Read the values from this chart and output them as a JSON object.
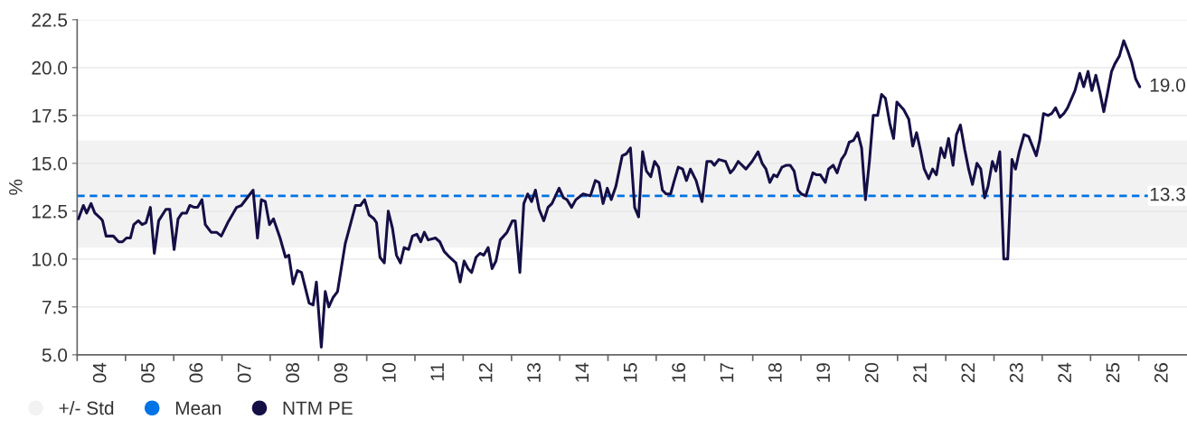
{
  "chart_data": {
    "type": "line",
    "ylabel": "%",
    "xlim": [
      "2004-01-01",
      "2027-01-01"
    ],
    "xticks": [
      {
        "value": "2004-01-01",
        "label": null
      },
      {
        "value": "2004-07-01",
        "label": "04"
      },
      {
        "value": "2005-01-01",
        "label": null
      },
      {
        "value": "2005-07-01",
        "label": "05"
      },
      {
        "value": "2006-01-01",
        "label": null
      },
      {
        "value": "2006-07-01",
        "label": "06"
      },
      {
        "value": "2007-01-01",
        "label": null
      },
      {
        "value": "2007-07-01",
        "label": "07"
      },
      {
        "value": "2008-01-01",
        "label": null
      },
      {
        "value": "2008-07-01",
        "label": "08"
      },
      {
        "value": "2009-01-01",
        "label": null
      },
      {
        "value": "2009-07-01",
        "label": "09"
      },
      {
        "value": "2010-01-01",
        "label": null
      },
      {
        "value": "2010-07-01",
        "label": "10"
      },
      {
        "value": "2011-01-01",
        "label": null
      },
      {
        "value": "2011-07-01",
        "label": "11"
      },
      {
        "value": "2012-01-01",
        "label": null
      },
      {
        "value": "2012-07-01",
        "label": "12"
      },
      {
        "value": "2013-01-01",
        "label": null
      },
      {
        "value": "2013-07-01",
        "label": "13"
      },
      {
        "value": "2014-01-01",
        "label": null
      },
      {
        "value": "2014-07-01",
        "label": "14"
      },
      {
        "value": "2015-01-01",
        "label": null
      },
      {
        "value": "2015-07-01",
        "label": "15"
      },
      {
        "value": "2016-01-01",
        "label": null
      },
      {
        "value": "2016-07-01",
        "label": "16"
      },
      {
        "value": "2017-01-01",
        "label": null
      },
      {
        "value": "2017-07-01",
        "label": "17"
      },
      {
        "value": "2018-01-01",
        "label": null
      },
      {
        "value": "2018-07-01",
        "label": "18"
      },
      {
        "value": "2019-01-01",
        "label": null
      },
      {
        "value": "2019-07-01",
        "label": "19"
      },
      {
        "value": "2020-01-01",
        "label": null
      },
      {
        "value": "2020-07-01",
        "label": "20"
      },
      {
        "value": "2021-01-01",
        "label": null
      },
      {
        "value": "2021-07-01",
        "label": "21"
      },
      {
        "value": "2022-01-01",
        "label": null
      },
      {
        "value": "2022-07-01",
        "label": "22"
      },
      {
        "value": "2023-01-01",
        "label": null
      },
      {
        "value": "2023-07-01",
        "label": "23"
      },
      {
        "value": "2024-01-01",
        "label": null
      },
      {
        "value": "2024-07-01",
        "label": "24"
      },
      {
        "value": "2025-01-01",
        "label": null
      },
      {
        "value": "2025-07-01",
        "label": "25"
      },
      {
        "value": "2026-01-01",
        "label": null
      },
      {
        "value": "2026-07-01",
        "label": "26"
      }
    ],
    "ylim": [
      5.0,
      22.5
    ],
    "yticks": [
      {
        "value": 5.0,
        "label": "5.0"
      },
      {
        "value": 7.5,
        "label": "7.5"
      },
      {
        "value": 10.0,
        "label": "10.0"
      },
      {
        "value": 12.5,
        "label": "12.5"
      },
      {
        "value": 15.0,
        "label": "15.0"
      },
      {
        "value": 17.5,
        "label": "17.5"
      },
      {
        "value": 20.0,
        "label": "20.0"
      },
      {
        "value": 22.5,
        "label": "22.5"
      }
    ],
    "grid": "y",
    "legend": "bottom left",
    "marker": "none",
    "line_style": "solid",
    "bands": [
      {
        "axis": "y",
        "from": 10.6,
        "to": 16.2,
        "label": "+/- Std",
        "color": "#f3f2f3"
      }
    ],
    "ref_lines": [
      {
        "axis": "y",
        "value": 13.3,
        "label": "Mean",
        "color": "#0073e6",
        "line_style": "dashed"
      }
    ],
    "annotations": [
      {
        "text": "13.3",
        "x": "2026-08-07",
        "y": 13.3
      },
      {
        "text": "19.0",
        "x": "2026-08-07",
        "y": 19.0
      }
    ],
    "series": [
      {
        "name": "NTM PE",
        "color": "#140f45",
        "x": [
          "2004-01-11",
          "2004-02-17",
          "2004-03-13",
          "2004-04-15",
          "2004-05-14",
          "2004-07-01",
          "2004-07-11",
          "2004-08-07",
          "2004-10-01",
          "2004-11-10",
          "2004-12-09",
          "2005-01-08",
          "2005-02-07",
          "2005-03-05",
          "2005-04-08",
          "2005-05-07",
          "2005-06-05",
          "2005-07-08",
          "2005-08-07",
          "2005-09-09",
          "2005-11-03",
          "2005-12-02",
          "2006-01-04",
          "2006-02-03",
          "2006-03-05",
          "2006-04-08",
          "2006-05-03",
          "2006-06-05",
          "2006-07-01",
          "2006-08-03",
          "2006-08-28",
          "2006-10-11",
          "2006-11-21",
          "2006-12-27",
          "2007-02-14",
          "2007-04-22",
          "2007-05-28",
          "2007-07-11",
          "2007-08-25",
          "2007-09-27",
          "2007-10-26",
          "2007-11-25",
          "2007-12-27",
          "2008-01-26",
          "2008-03-16",
          "2008-04-26",
          "2008-05-21",
          "2008-06-23",
          "2008-07-26",
          "2008-08-25",
          "2008-10-22",
          "2008-11-21",
          "2008-12-16",
          "2009-01-22",
          "2009-02-21",
          "2009-03-20",
          "2009-04-22",
          "2009-05-25",
          "2009-07-22",
          "2009-10-08",
          "2009-11-14",
          "2009-12-16",
          "2010-01-19",
          "2010-02-25",
          "2010-03-16",
          "2010-04-11",
          "2010-05-14",
          "2010-06-13",
          "2010-07-15",
          "2010-08-14",
          "2010-09-13",
          "2010-10-11",
          "2010-11-14",
          "2010-12-13",
          "2011-01-15",
          "2011-02-14",
          "2011-03-13",
          "2011-04-11",
          "2011-06-05",
          "2011-07-08",
          "2011-08-10",
          "2011-09-20",
          "2011-11-07",
          "2011-12-09",
          "2012-01-08",
          "2012-02-07",
          "2012-03-05",
          "2012-04-08",
          "2012-05-07",
          "2012-06-05",
          "2012-07-08",
          "2012-08-07",
          "2012-09-05",
          "2012-10-08",
          "2012-11-28",
          "2013-01-08",
          "2013-01-29",
          "2013-03-05",
          "2013-04-04",
          "2013-05-03",
          "2013-06-02",
          "2013-07-01",
          "2013-07-29",
          "2013-09-02",
          "2013-10-04",
          "2013-11-03",
          "2013-12-27",
          "2014-01-29",
          "2014-02-25",
          "2014-04-01",
          "2014-05-03",
          "2014-06-27",
          "2014-08-21",
          "2014-09-27",
          "2014-10-26",
          "2014-11-25",
          "2014-12-27",
          "2015-01-26",
          "2015-03-02",
          "2015-04-19",
          "2015-05-21",
          "2015-06-20",
          "2015-07-22",
          "2015-08-21",
          "2015-09-20",
          "2015-10-19",
          "2015-11-21",
          "2015-12-20",
          "2016-01-19",
          "2016-02-17",
          "2016-03-16",
          "2016-04-19",
          "2016-05-17",
          "2016-06-16",
          "2016-07-19",
          "2016-08-17",
          "2016-09-16",
          "2016-10-29",
          "2016-12-13",
          "2017-01-19",
          "2017-02-21",
          "2017-03-16",
          "2017-04-19",
          "2017-06-09",
          "2017-07-15",
          "2017-08-10",
          "2017-09-13",
          "2017-11-10",
          "2017-12-27",
          "2018-02-10",
          "2018-03-13",
          "2018-04-11",
          "2018-05-10",
          "2018-06-09",
          "2018-07-04",
          "2018-08-10",
          "2018-09-13",
          "2018-10-11",
          "2018-11-10",
          "2018-12-09",
          "2019-01-04",
          "2019-02-07",
          "2019-04-01",
          "2019-04-29",
          "2019-05-28",
          "2019-07-04",
          "2019-07-29",
          "2019-09-02",
          "2019-10-01",
          "2019-11-03",
          "2019-12-02",
          "2020-01-01",
          "2020-02-03",
          "2020-03-05",
          "2020-04-04",
          "2020-05-03",
          "2020-06-02",
          "2020-07-01",
          "2020-08-03",
          "2020-09-02",
          "2020-10-01",
          "2020-11-03",
          "2020-12-02",
          "2020-12-27",
          "2021-02-17",
          "2021-03-27",
          "2021-04-26",
          "2021-05-25",
          "2021-06-23",
          "2021-07-22",
          "2021-08-25",
          "2021-09-23",
          "2021-10-22",
          "2021-11-25",
          "2021-12-23",
          "2022-01-22",
          "2022-02-25",
          "2022-03-23",
          "2022-04-22",
          "2022-05-25",
          "2022-06-23",
          "2022-07-22",
          "2022-08-25",
          "2022-09-23",
          "2022-10-22",
          "2022-11-17",
          "2022-12-20",
          "2023-01-15",
          "2023-02-14",
          "2023-03-16",
          "2023-04-15",
          "2023-05-17",
          "2023-06-13",
          "2023-07-11",
          "2023-08-17",
          "2023-09-20",
          "2023-11-17",
          "2023-12-13",
          "2024-01-11",
          "2024-02-14",
          "2024-03-13",
          "2024-04-11",
          "2024-05-14",
          "2024-06-13",
          "2024-07-11",
          "2024-09-05",
          "2024-10-11",
          "2024-11-10",
          "2024-12-13",
          "2025-01-11",
          "2025-02-10",
          "2025-03-13",
          "2025-04-11",
          "2025-05-10",
          "2025-06-09",
          "2025-07-04",
          "2025-08-07",
          "2025-09-09",
          "2025-10-08",
          "2025-11-07",
          "2025-12-09",
          "2026-01-08"
        ],
        "values": [
          12.1,
          12.8,
          12.4,
          12.9,
          12.4,
          12.1,
          12.0,
          11.2,
          11.2,
          10.9,
          10.9,
          11.1,
          11.1,
          11.8,
          12.0,
          11.8,
          11.9,
          12.7,
          10.3,
          12.0,
          12.6,
          12.6,
          10.5,
          12.1,
          12.4,
          12.4,
          12.8,
          12.7,
          12.7,
          13.1,
          11.8,
          11.4,
          11.4,
          11.2,
          11.9,
          12.7,
          12.8,
          13.2,
          13.6,
          11.1,
          13.1,
          13.0,
          11.8,
          12.1,
          11.1,
          10.1,
          10.2,
          8.7,
          9.4,
          9.3,
          7.7,
          7.6,
          8.8,
          5.4,
          8.3,
          7.5,
          8.0,
          8.3,
          10.8,
          12.8,
          12.8,
          13.1,
          12.3,
          12.1,
          11.9,
          10.1,
          9.8,
          12.5,
          11.6,
          10.2,
          9.8,
          10.6,
          10.5,
          11.2,
          11.3,
          10.9,
          11.4,
          11.0,
          11.1,
          10.9,
          10.4,
          10.1,
          9.8,
          8.8,
          9.9,
          9.5,
          9.3,
          10.1,
          10.3,
          10.2,
          10.6,
          9.5,
          9.9,
          11.0,
          11.4,
          12.0,
          12.0,
          9.3,
          12.9,
          13.4,
          13.0,
          13.6,
          12.6,
          12.0,
          12.7,
          12.9,
          13.7,
          13.2,
          13.1,
          12.7,
          13.1,
          13.4,
          13.3,
          14.1,
          14.0,
          12.9,
          13.7,
          13.1,
          13.8,
          15.4,
          15.5,
          15.8,
          12.7,
          12.2,
          15.6,
          14.6,
          14.3,
          15.1,
          14.8,
          13.6,
          13.4,
          13.4,
          14.1,
          14.8,
          14.7,
          14.1,
          14.7,
          14.1,
          13.0,
          15.1,
          15.1,
          14.9,
          15.2,
          15.1,
          14.5,
          14.7,
          15.1,
          14.7,
          15.1,
          15.6,
          15.0,
          14.7,
          14.0,
          14.4,
          14.3,
          14.8,
          14.9,
          14.9,
          14.6,
          13.6,
          13.4,
          13.3,
          14.5,
          14.4,
          14.4,
          14.0,
          14.7,
          14.9,
          14.5,
          15.2,
          15.5,
          16.1,
          16.2,
          16.6,
          15.8,
          13.1,
          15.1,
          17.5,
          17.5,
          18.6,
          18.4,
          17.1,
          16.3,
          18.2,
          17.8,
          17.3,
          15.9,
          16.6,
          15.7,
          14.7,
          14.2,
          14.7,
          14.4,
          15.8,
          15.3,
          16.3,
          14.9,
          16.5,
          17.0,
          15.7,
          14.7,
          13.9,
          15.0,
          14.7,
          13.2,
          13.8,
          15.1,
          14.6,
          15.6,
          10.0,
          10.0,
          15.2,
          14.7,
          15.6,
          16.5,
          16.4,
          15.4,
          16.2,
          17.6,
          17.5,
          17.6,
          17.9,
          17.4,
          17.6,
          17.9,
          18.8,
          19.7,
          19.0,
          19.8,
          18.8,
          19.6,
          18.7,
          17.7,
          18.7,
          19.8,
          20.2,
          20.6,
          21.4,
          20.9,
          20.3,
          19.4,
          19.0
        ]
      }
    ]
  }
}
